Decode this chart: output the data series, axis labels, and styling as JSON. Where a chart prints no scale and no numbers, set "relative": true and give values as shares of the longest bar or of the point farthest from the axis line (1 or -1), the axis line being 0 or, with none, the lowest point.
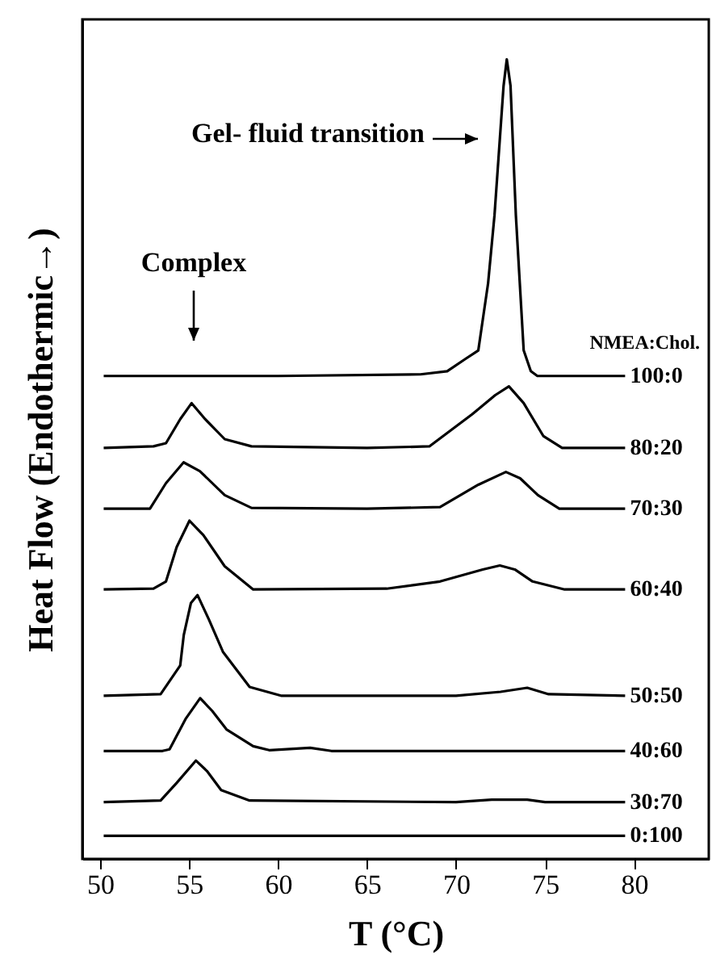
{
  "chart_data": {
    "type": "line",
    "relative": true,
    "xlabel": "T (°C)",
    "ylabel": "Heat Flow (Endothermic→)",
    "legend_title": "NMEA:Chol.",
    "xlim": [
      49,
      84.2
    ],
    "xticks": [
      50,
      55,
      60,
      65,
      70,
      75,
      80
    ],
    "annotations": [
      "Gel- fluid transition",
      "Complex"
    ],
    "series": [
      {
        "name": "100:0",
        "color": "#000000",
        "x": [
          50.2,
          60,
          68,
          69.5,
          70.5,
          71.25,
          71.8,
          72.16,
          72.67,
          72.85,
          73.06,
          73.36,
          73.8,
          74.2,
          74.57,
          79.5
        ],
        "values": [
          0.604,
          0.604,
          0.606,
          0.61,
          0.625,
          0.636,
          0.72,
          0.805,
          0.967,
          1,
          0.967,
          0.805,
          0.636,
          0.61,
          0.604,
          0.604
        ]
      },
      {
        "name": "80:20",
        "color": "#000000",
        "x": [
          50.2,
          53,
          53.7,
          54.5,
          55.14,
          55.9,
          57,
          58.5,
          65,
          68.5,
          70.9,
          72.2,
          72.97,
          73.8,
          74.9,
          75.96,
          79.5
        ],
        "values": [
          0.514,
          0.516,
          0.52,
          0.55,
          0.57,
          0.55,
          0.525,
          0.516,
          0.514,
          0.516,
          0.556,
          0.58,
          0.591,
          0.57,
          0.529,
          0.514,
          0.514
        ]
      },
      {
        "name": "70:30",
        "color": "#000000",
        "x": [
          50.2,
          52.8,
          53.7,
          54.69,
          55.6,
          57,
          58.5,
          65,
          69.1,
          71.25,
          72.8,
          73.6,
          74.6,
          75.8,
          79.5
        ],
        "values": [
          0.438,
          0.438,
          0.47,
          0.496,
          0.485,
          0.455,
          0.439,
          0.438,
          0.44,
          0.468,
          0.484,
          0.476,
          0.455,
          0.438,
          0.438
        ]
      },
      {
        "name": "60:40",
        "color": "#000000",
        "x": [
          50.2,
          53,
          53.7,
          54.3,
          55.02,
          55.8,
          57,
          58.6,
          66.1,
          69.1,
          71.5,
          72.46,
          73.3,
          74.3,
          76.1,
          79.5
        ],
        "values": [
          0.337,
          0.338,
          0.347,
          0.39,
          0.423,
          0.405,
          0.366,
          0.337,
          0.338,
          0.347,
          0.362,
          0.367,
          0.362,
          0.347,
          0.337,
          0.337
        ]
      },
      {
        "name": "50:50",
        "color": "#000000",
        "x": [
          50.2,
          53.4,
          54.5,
          54.7,
          55.1,
          55.47,
          56.1,
          56.9,
          58.4,
          60.2,
          70,
          72.5,
          74,
          75.2,
          79.5
        ],
        "values": [
          0.204,
          0.206,
          0.242,
          0.28,
          0.32,
          0.33,
          0.3,
          0.259,
          0.215,
          0.204,
          0.204,
          0.209,
          0.214,
          0.206,
          0.204
        ]
      },
      {
        "name": "40:60",
        "color": "#000000",
        "x": [
          50.2,
          53.5,
          53.9,
          54.8,
          55.62,
          56.3,
          57.1,
          58.6,
          59.5,
          61.8,
          63,
          79.5
        ],
        "values": [
          0.135,
          0.135,
          0.137,
          0.175,
          0.201,
          0.185,
          0.162,
          0.141,
          0.136,
          0.139,
          0.135,
          0.135
        ]
      },
      {
        "name": "30:70",
        "color": "#000000",
        "x": [
          50.2,
          53.4,
          54.3,
          55.38,
          56,
          56.8,
          58.4,
          70,
          72,
          74,
          75,
          79.5
        ],
        "values": [
          0.071,
          0.073,
          0.095,
          0.123,
          0.11,
          0.086,
          0.073,
          0.071,
          0.074,
          0.074,
          0.071,
          0.071
        ]
      },
      {
        "name": "0:100",
        "color": "#000000",
        "x": [
          50.2,
          79.5
        ],
        "values": [
          0.029,
          0.029
        ]
      }
    ]
  }
}
